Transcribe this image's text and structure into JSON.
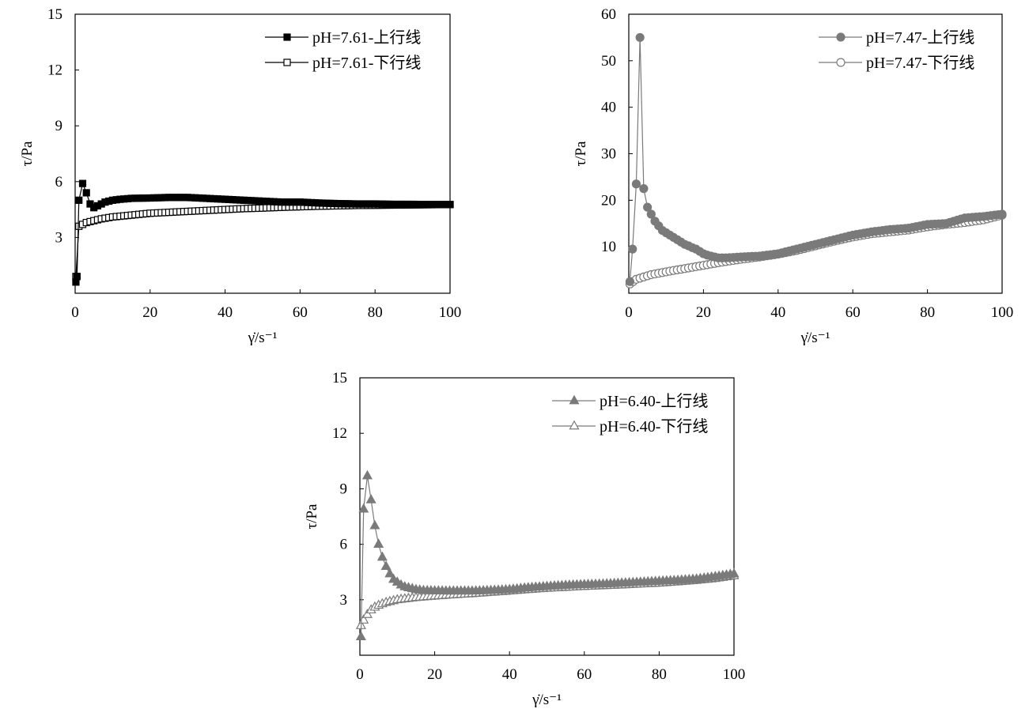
{
  "charts": [
    {
      "type": "line",
      "xlabel": "γ̇/s⁻¹",
      "ylabel": "τ/Pa",
      "xlim": [
        0,
        100
      ],
      "ylim": [
        0,
        15
      ],
      "xticks": [
        "0",
        "20",
        "40",
        "60",
        "80",
        "100"
      ],
      "yticks": [
        "3",
        "6",
        "9",
        "12",
        "15"
      ],
      "legend_position": "top-right",
      "series": [
        {
          "name": "pH=7.61-上行线",
          "color": "#000000",
          "marker": "square",
          "filled": true,
          "key": "up"
        },
        {
          "name": "pH=7.61-下行线",
          "color": "#000000",
          "marker": "square",
          "filled": false,
          "key": "down"
        }
      ]
    },
    {
      "type": "line",
      "xlabel": "γ̇/s⁻¹",
      "ylabel": "τ/Pa",
      "xlim": [
        0,
        100
      ],
      "ylim": [
        0,
        60
      ],
      "xticks": [
        "0",
        "20",
        "40",
        "60",
        "80",
        "100"
      ],
      "yticks": [
        "10",
        "20",
        "30",
        "40",
        "50",
        "60"
      ],
      "legend_position": "top-right",
      "series": [
        {
          "name": "pH=7.47-上行线",
          "color": "#7a7a7a",
          "marker": "circle",
          "filled": true,
          "key": "up"
        },
        {
          "name": "pH=7.47-下行线",
          "color": "#7a7a7a",
          "marker": "circle",
          "filled": false,
          "key": "down"
        }
      ]
    },
    {
      "type": "line",
      "xlabel": "γ̇/s⁻¹",
      "ylabel": "τ/Pa",
      "xlim": [
        0,
        100
      ],
      "ylim": [
        0,
        15
      ],
      "xticks": [
        "0",
        "20",
        "40",
        "60",
        "80",
        "100"
      ],
      "yticks": [
        "3",
        "6",
        "9",
        "12",
        "15"
      ],
      "legend_position": "top-right",
      "series": [
        {
          "name": "pH=6.40-上行线",
          "color": "#7a7a7a",
          "marker": "triangle",
          "filled": true,
          "key": "up"
        },
        {
          "name": "pH=6.40-下行线",
          "color": "#7a7a7a",
          "marker": "triangle",
          "filled": false,
          "key": "down"
        }
      ]
    }
  ],
  "chart_data": [
    {
      "type": "line",
      "xlim": [
        0,
        100
      ],
      "ylim": [
        0,
        15
      ],
      "series": [
        {
          "name": "pH=7.61-上行线",
          "points": [
            [
              0.2,
              0.6
            ],
            [
              0.5,
              0.9
            ],
            [
              1,
              5.0
            ],
            [
              2,
              5.9
            ],
            [
              3,
              5.4
            ],
            [
              4,
              4.8
            ],
            [
              5,
              4.6
            ],
            [
              6,
              4.7
            ],
            [
              7,
              4.8
            ],
            [
              8,
              4.9
            ],
            [
              10,
              5.0
            ],
            [
              12,
              5.05
            ],
            [
              15,
              5.1
            ],
            [
              20,
              5.12
            ],
            [
              25,
              5.15
            ],
            [
              30,
              5.15
            ],
            [
              35,
              5.1
            ],
            [
              40,
              5.05
            ],
            [
              45,
              5.0
            ],
            [
              50,
              4.95
            ],
            [
              55,
              4.9
            ],
            [
              60,
              4.9
            ],
            [
              65,
              4.85
            ],
            [
              70,
              4.82
            ],
            [
              75,
              4.8
            ],
            [
              80,
              4.8
            ],
            [
              85,
              4.78
            ],
            [
              90,
              4.78
            ],
            [
              95,
              4.77
            ],
            [
              100,
              4.77
            ]
          ]
        },
        {
          "name": "pH=7.61-下行线",
          "points": [
            [
              0.2,
              0.9
            ],
            [
              1,
              3.6
            ],
            [
              2,
              3.7
            ],
            [
              3,
              3.8
            ],
            [
              4,
              3.85
            ],
            [
              5,
              3.9
            ],
            [
              7,
              4.0
            ],
            [
              10,
              4.1
            ],
            [
              15,
              4.2
            ],
            [
              20,
              4.3
            ],
            [
              25,
              4.35
            ],
            [
              30,
              4.4
            ],
            [
              35,
              4.45
            ],
            [
              40,
              4.5
            ],
            [
              45,
              4.55
            ],
            [
              50,
              4.58
            ],
            [
              55,
              4.62
            ],
            [
              60,
              4.65
            ],
            [
              65,
              4.68
            ],
            [
              70,
              4.7
            ],
            [
              75,
              4.72
            ],
            [
              80,
              4.73
            ],
            [
              85,
              4.74
            ],
            [
              90,
              4.75
            ],
            [
              95,
              4.76
            ],
            [
              100,
              4.77
            ]
          ]
        }
      ]
    },
    {
      "type": "line",
      "xlim": [
        0,
        100
      ],
      "ylim": [
        0,
        60
      ],
      "series": [
        {
          "name": "pH=7.47-上行线",
          "points": [
            [
              0.3,
              2.5
            ],
            [
              1,
              9.5
            ],
            [
              2,
              23.5
            ],
            [
              3,
              55
            ],
            [
              4,
              22.5
            ],
            [
              5,
              18.5
            ],
            [
              6,
              17
            ],
            [
              7,
              15.5
            ],
            [
              8,
              14.5
            ],
            [
              9,
              13.5
            ],
            [
              10,
              13
            ],
            [
              11,
              12.5
            ],
            [
              12,
              12
            ],
            [
              13,
              11.5
            ],
            [
              14,
              11
            ],
            [
              15,
              10.5
            ],
            [
              16,
              10.2
            ],
            [
              17,
              9.8
            ],
            [
              18,
              9.5
            ],
            [
              19,
              9
            ],
            [
              20,
              8.5
            ],
            [
              21,
              8.2
            ],
            [
              22,
              8
            ],
            [
              23,
              7.8
            ],
            [
              24,
              7.6
            ],
            [
              26,
              7.6
            ],
            [
              30,
              7.8
            ],
            [
              35,
              8
            ],
            [
              40,
              8.5
            ],
            [
              45,
              9.5
            ],
            [
              50,
              10.5
            ],
            [
              55,
              11.5
            ],
            [
              60,
              12.5
            ],
            [
              65,
              13.2
            ],
            [
              70,
              13.7
            ],
            [
              75,
              14
            ],
            [
              80,
              14.8
            ],
            [
              85,
              15
            ],
            [
              90,
              16.2
            ],
            [
              95,
              16.5
            ],
            [
              100,
              17
            ]
          ]
        },
        {
          "name": "pH=7.47-下行线",
          "points": [
            [
              0.3,
              2
            ],
            [
              2,
              3
            ],
            [
              4,
              3.5
            ],
            [
              6,
              4
            ],
            [
              8,
              4.3
            ],
            [
              10,
              4.6
            ],
            [
              12,
              4.9
            ],
            [
              15,
              5.3
            ],
            [
              20,
              6
            ],
            [
              25,
              6.7
            ],
            [
              30,
              7.3
            ],
            [
              35,
              7.8
            ],
            [
              40,
              8.4
            ],
            [
              45,
              9.2
            ],
            [
              50,
              10.2
            ],
            [
              55,
              11.2
            ],
            [
              60,
              12.1
            ],
            [
              65,
              12.8
            ],
            [
              70,
              13.2
            ],
            [
              75,
              13.6
            ],
            [
              80,
              14.3
            ],
            [
              85,
              14.8
            ],
            [
              90,
              15.2
            ],
            [
              95,
              15.8
            ],
            [
              100,
              16.8
            ]
          ]
        }
      ]
    },
    {
      "type": "line",
      "xlim": [
        0,
        100
      ],
      "ylim": [
        0,
        15
      ],
      "series": [
        {
          "name": "pH=6.40-上行线",
          "points": [
            [
              0.3,
              1.0
            ],
            [
              1,
              7.9
            ],
            [
              2,
              9.7
            ],
            [
              3,
              8.4
            ],
            [
              4,
              7.0
            ],
            [
              5,
              6.0
            ],
            [
              6,
              5.3
            ],
            [
              7,
              4.8
            ],
            [
              8,
              4.4
            ],
            [
              9,
              4.1
            ],
            [
              10,
              3.95
            ],
            [
              11,
              3.8
            ],
            [
              12,
              3.7
            ],
            [
              13,
              3.65
            ],
            [
              14,
              3.6
            ],
            [
              15,
              3.55
            ],
            [
              17,
              3.5
            ],
            [
              20,
              3.48
            ],
            [
              25,
              3.47
            ],
            [
              30,
              3.47
            ],
            [
              35,
              3.5
            ],
            [
              40,
              3.55
            ],
            [
              45,
              3.65
            ],
            [
              50,
              3.72
            ],
            [
              55,
              3.78
            ],
            [
              60,
              3.82
            ],
            [
              65,
              3.85
            ],
            [
              70,
              3.9
            ],
            [
              75,
              3.95
            ],
            [
              80,
              4.0
            ],
            [
              85,
              4.05
            ],
            [
              90,
              4.12
            ],
            [
              95,
              4.25
            ],
            [
              100,
              4.4
            ]
          ]
        },
        {
          "name": "pH=6.40-下行线",
          "points": [
            [
              0.3,
              1.6
            ],
            [
              1,
              1.9
            ],
            [
              2,
              2.2
            ],
            [
              3,
              2.45
            ],
            [
              4,
              2.6
            ],
            [
              5,
              2.7
            ],
            [
              6,
              2.78
            ],
            [
              7,
              2.85
            ],
            [
              8,
              2.9
            ],
            [
              10,
              3.0
            ],
            [
              12,
              3.05
            ],
            [
              15,
              3.12
            ],
            [
              20,
              3.2
            ],
            [
              25,
              3.27
            ],
            [
              30,
              3.33
            ],
            [
              35,
              3.4
            ],
            [
              40,
              3.47
            ],
            [
              45,
              3.55
            ],
            [
              50,
              3.62
            ],
            [
              55,
              3.67
            ],
            [
              60,
              3.72
            ],
            [
              65,
              3.76
            ],
            [
              70,
              3.8
            ],
            [
              75,
              3.85
            ],
            [
              80,
              3.9
            ],
            [
              85,
              3.97
            ],
            [
              90,
              4.05
            ],
            [
              95,
              4.15
            ],
            [
              100,
              4.3
            ]
          ]
        }
      ]
    }
  ]
}
